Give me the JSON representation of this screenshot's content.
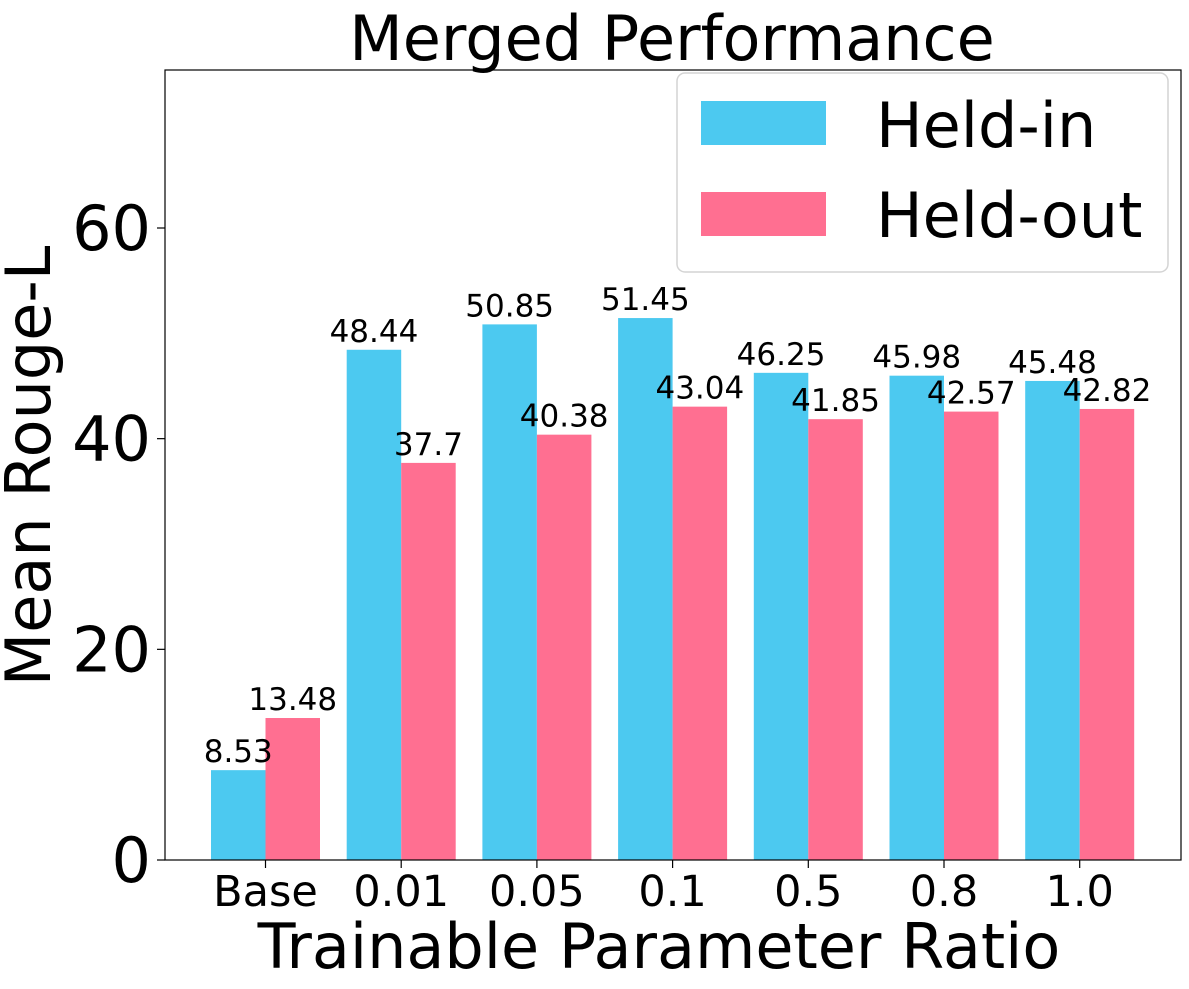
{
  "chart_data": {
    "type": "bar",
    "title": "Merged Performance",
    "xlabel": "Trainable Parameter Ratio",
    "ylabel": "Mean Rouge-L",
    "categories": [
      "Base",
      "0.01",
      "0.05",
      "0.1",
      "0.5",
      "0.8",
      "1.0"
    ],
    "ylim": [
      0,
      75
    ],
    "yticks": [
      0,
      20,
      40,
      60
    ],
    "ytick_labels": [
      "0",
      "20",
      "40",
      "60"
    ],
    "legend_position": "top-right",
    "series": [
      {
        "name": "Held-in",
        "color": "#4CC9F0",
        "values": [
          8.53,
          48.44,
          50.85,
          51.45,
          46.25,
          45.98,
          45.48
        ],
        "labels": [
          "8.53",
          "48.44",
          "50.85",
          "51.45",
          "46.25",
          "45.98",
          "45.48"
        ]
      },
      {
        "name": "Held-out",
        "color": "#FF6F91",
        "values": [
          13.48,
          37.7,
          40.38,
          43.04,
          41.85,
          42.57,
          42.82
        ],
        "labels": [
          "13.48",
          "37.7",
          "40.38",
          "43.04",
          "41.85",
          "42.57",
          "42.82"
        ]
      }
    ]
  }
}
